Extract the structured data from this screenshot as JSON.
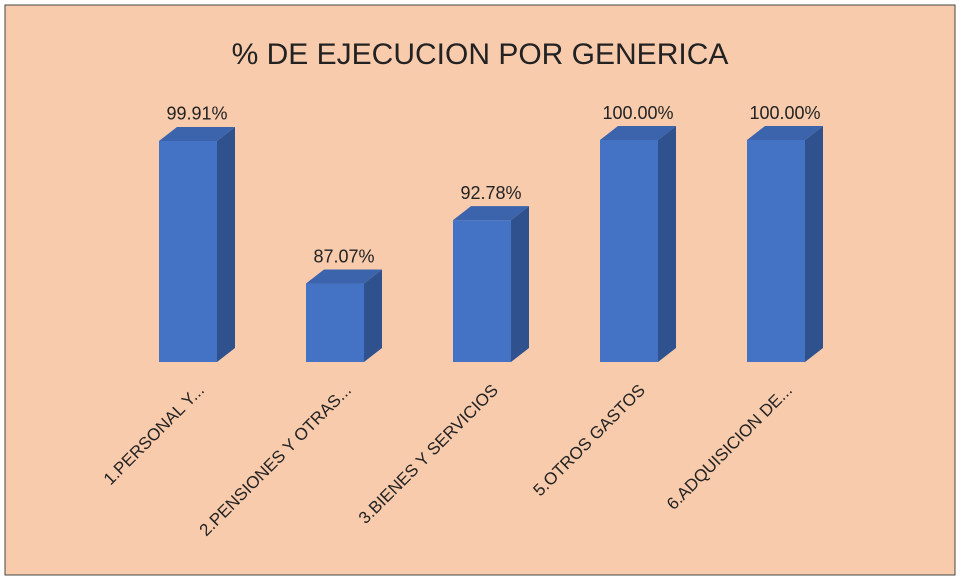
{
  "chart_data": {
    "type": "bar3d",
    "title": "% DE EJECUCION  POR GENERICA",
    "categories": [
      "1.PERSONAL Y...",
      "2.PENSIONES Y OTRAS...",
      "3.BIENES Y SERVICIOS",
      "5.OTROS GASTOS",
      "6.ADQUISICION DE..."
    ],
    "values": [
      99.91,
      87.07,
      92.78,
      100,
      100
    ],
    "value_labels": [
      "99.91%",
      "87.07%",
      "92.78%",
      "100.00%",
      "100.00%"
    ],
    "color": "#4472c4",
    "ylim": [
      80,
      100
    ]
  }
}
